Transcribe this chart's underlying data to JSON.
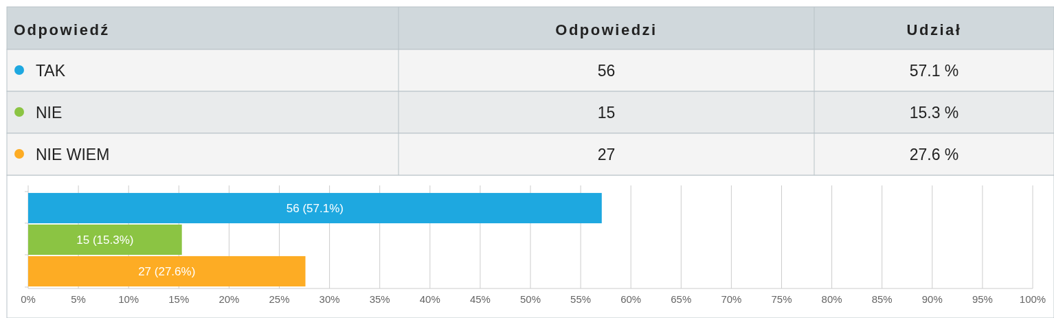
{
  "chart_data": [
    {
      "type": "other",
      "categories": [
        "TAK",
        "NIE",
        "NIE WIEM"
      ],
      "colors": [
        "#1ea8e0",
        "#8bc443",
        "#fdac24"
      ],
      "annotations": [
        "Odpowiedź",
        "Odpowiedzi",
        "Udział",
        "56",
        "57.1 %",
        "15",
        "15.3 %",
        "27",
        "27.6 %"
      ]
    },
    {
      "type": "bar",
      "orientation": "horizontal",
      "categories": [
        null,
        null,
        null
      ],
      "values": [
        57.1,
        15.3,
        27.6
      ],
      "colors": [
        "#1ea8e0",
        "#8bc443",
        "#fdac24"
      ],
      "value_labels": [
        "56 (57.1%)",
        "15 (15.3%)",
        "27 (27.6%)"
      ],
      "xlim": [
        0,
        100
      ],
      "xticks": [
        {
          "value": 0,
          "label": "0%"
        },
        {
          "value": 5,
          "label": "5%"
        },
        {
          "value": 10,
          "label": "10%"
        },
        {
          "value": 15,
          "label": "15%"
        },
        {
          "value": 20,
          "label": "20%"
        },
        {
          "value": 25,
          "label": "25%"
        },
        {
          "value": 30,
          "label": "30%"
        },
        {
          "value": 35,
          "label": "35%"
        },
        {
          "value": 40,
          "label": "40%"
        },
        {
          "value": 45,
          "label": "45%"
        },
        {
          "value": 50,
          "label": "50%"
        },
        {
          "value": 55,
          "label": "55%"
        },
        {
          "value": 60,
          "label": "60%"
        },
        {
          "value": 65,
          "label": "65%"
        },
        {
          "value": 70,
          "label": "70%"
        },
        {
          "value": 75,
          "label": "75%"
        },
        {
          "value": 80,
          "label": "80%"
        },
        {
          "value": 85,
          "label": "85%"
        },
        {
          "value": 90,
          "label": "90%"
        },
        {
          "value": 95,
          "label": "95%"
        },
        {
          "value": 100,
          "label": "100%"
        }
      ],
      "grid": "x"
    }
  ]
}
